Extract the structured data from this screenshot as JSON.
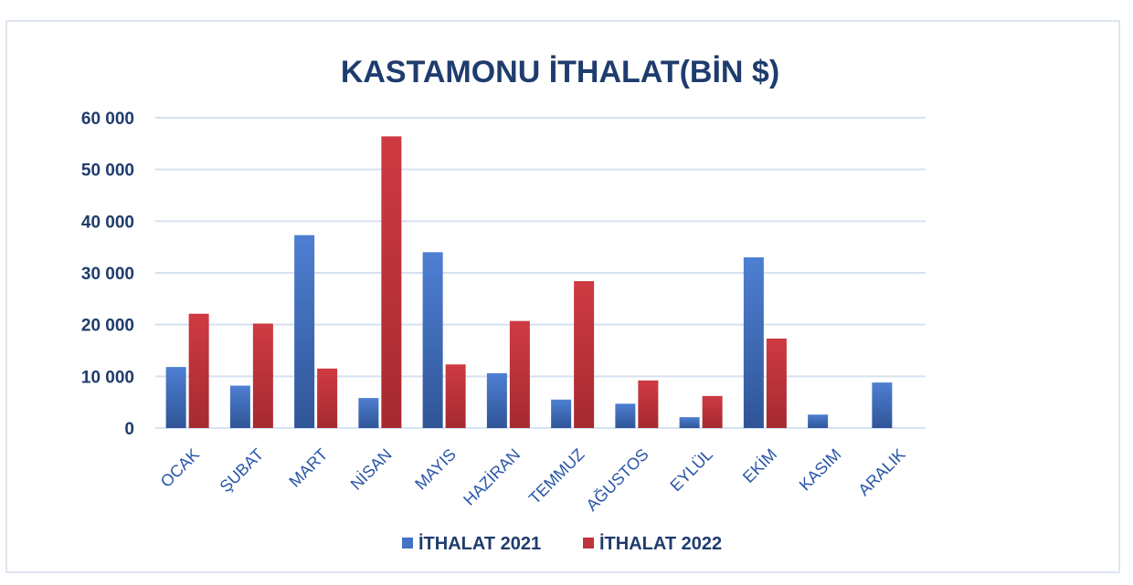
{
  "chart_data": {
    "type": "bar",
    "title": "KASTAMONU İTHALAT(BİN $)",
    "categories": [
      "OCAK",
      "ŞUBAT",
      "MART",
      "NİSAN",
      "MAYIS",
      "HAZİRAN",
      "TEMMUZ",
      "AĞUSTOS",
      "EYLÜL",
      "EKİM",
      "KASIM",
      "ARALIK"
    ],
    "series": [
      {
        "name": "İTHALAT 2021",
        "color": "#4472c4",
        "values": [
          11800,
          8200,
          37300,
          5800,
          34000,
          10600,
          5500,
          4700,
          2100,
          33000,
          2600,
          8800
        ]
      },
      {
        "name": "İTHALAT 2022",
        "color": "#c0343b",
        "values": [
          22100,
          20200,
          11500,
          56400,
          12300,
          20700,
          28400,
          9200,
          6200,
          17300,
          null,
          null
        ]
      }
    ],
    "ylim": [
      0,
      60000
    ],
    "yticks": [
      0,
      10000,
      20000,
      30000,
      40000,
      50000,
      60000
    ],
    "ytick_labels": [
      "0",
      "10 000",
      "20 000",
      "30 000",
      "40 000",
      "50 000",
      "60 000"
    ],
    "grid": true,
    "legend_position": "bottom"
  }
}
